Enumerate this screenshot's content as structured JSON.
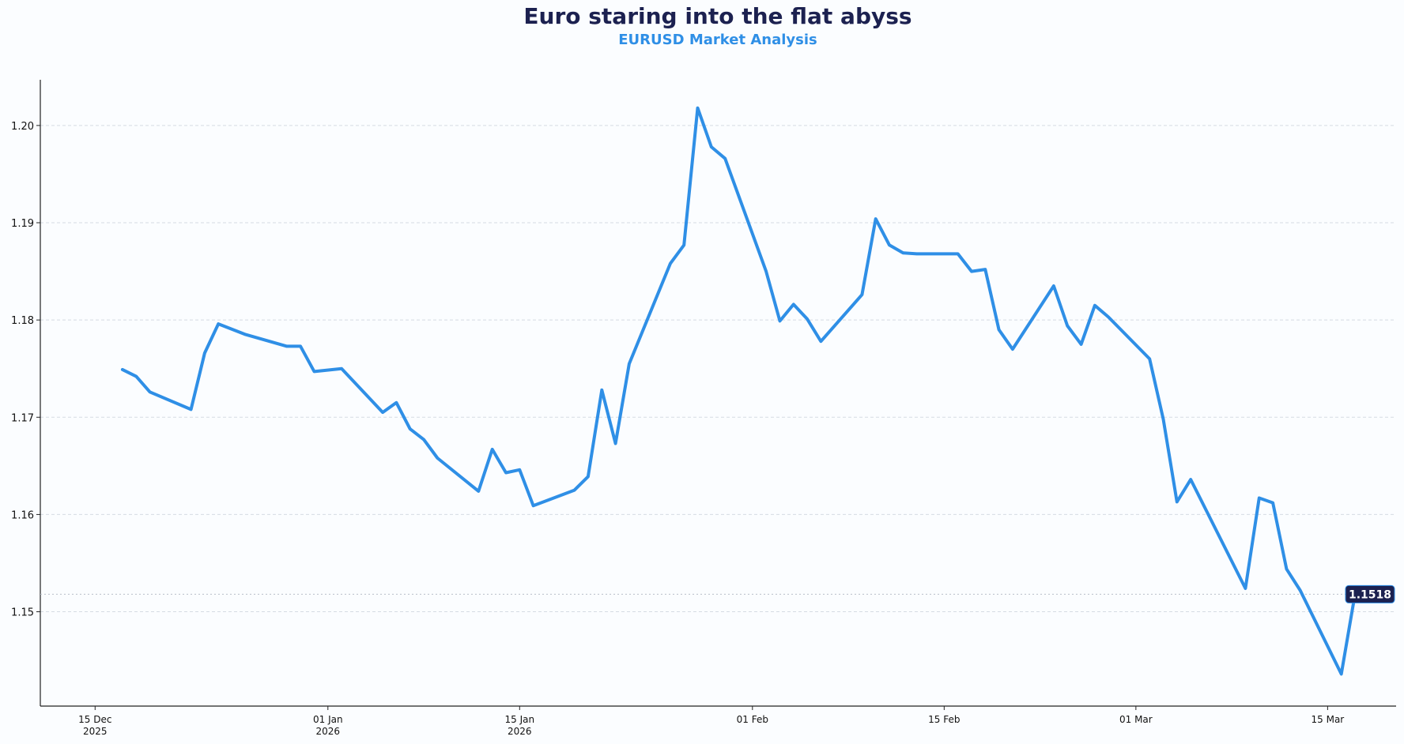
{
  "title": "Euro staring into the flat abyss",
  "subtitle": "EURUSD Market Analysis",
  "colors": {
    "line": "#2f8fe6",
    "title": "#1c2150",
    "subtitle": "#2f8fe6",
    "badge_bg": "#1c2150",
    "grid": "#d5dbe3",
    "background": "#fbfdff"
  },
  "chart_data": {
    "type": "line",
    "title": "Euro staring into the flat abyss",
    "subtitle": "EURUSD Market Analysis",
    "xlabel": "",
    "ylabel": "",
    "xlim": [
      "2025-12-11",
      "2026-03-20"
    ],
    "ylim": [
      1.1403,
      1.2047
    ],
    "y_ticks": [
      1.15,
      1.16,
      1.17,
      1.18,
      1.19,
      1.2
    ],
    "y_tick_labels": [
      "1.15",
      "1.16",
      "1.17",
      "1.18",
      "1.19",
      "1.20"
    ],
    "x_ticks": [
      {
        "date": "2025-12-15",
        "label": "15 Dec",
        "sublabel": "2025"
      },
      {
        "date": "2026-01-01",
        "label": "01 Jan",
        "sublabel": "2026"
      },
      {
        "date": "2026-01-15",
        "label": "15 Jan",
        "sublabel": "2026"
      },
      {
        "date": "2026-02-01",
        "label": "01 Feb",
        "sublabel": ""
      },
      {
        "date": "2026-02-15",
        "label": "15 Feb",
        "sublabel": ""
      },
      {
        "date": "2026-03-01",
        "label": "01 Mar",
        "sublabel": ""
      },
      {
        "date": "2026-03-15",
        "label": "15 Mar",
        "sublabel": ""
      }
    ],
    "grid": "horizontal dashed",
    "last_value_label": "1.1518",
    "last_value": 1.1518,
    "series": [
      {
        "x": [
          "2025-12-17",
          "2025-12-18",
          "2025-12-19",
          "2025-12-22",
          "2025-12-23",
          "2025-12-24",
          "2025-12-26",
          "2025-12-29",
          "2025-12-30",
          "2025-12-31",
          "2026-01-02",
          "2026-01-05",
          "2026-01-06",
          "2026-01-07",
          "2026-01-08",
          "2026-01-09",
          "2026-01-12",
          "2026-01-13",
          "2026-01-14",
          "2026-01-15",
          "2026-01-16",
          "2026-01-19",
          "2026-01-20",
          "2026-01-21",
          "2026-01-22",
          "2026-01-23",
          "2026-01-26",
          "2026-01-27",
          "2026-01-28",
          "2026-01-29",
          "2026-01-30",
          "2026-02-02",
          "2026-02-03",
          "2026-02-04",
          "2026-02-05",
          "2026-02-06",
          "2026-02-09",
          "2026-02-10",
          "2026-02-11",
          "2026-02-12",
          "2026-02-13",
          "2026-02-16",
          "2026-02-17",
          "2026-02-18",
          "2026-02-19",
          "2026-02-20",
          "2026-02-23",
          "2026-02-24",
          "2026-02-25",
          "2026-02-26",
          "2026-02-27",
          "2026-03-02",
          "2026-03-03",
          "2026-03-04",
          "2026-03-05",
          "2026-03-09",
          "2026-03-10",
          "2026-03-11",
          "2026-03-12",
          "2026-03-13",
          "2026-03-16",
          "2026-03-17"
        ],
        "values": [
          1.1749,
          1.1742,
          1.1726,
          1.1708,
          1.1766,
          1.1796,
          1.1785,
          1.1773,
          1.1773,
          1.1747,
          1.175,
          1.1705,
          1.1715,
          1.1688,
          1.1677,
          1.1658,
          1.1624,
          1.1667,
          1.1643,
          1.1646,
          1.1609,
          1.1625,
          1.1639,
          1.1728,
          1.1673,
          1.1755,
          1.1858,
          1.1877,
          1.2018,
          1.1978,
          1.1966,
          1.185,
          1.1799,
          1.1816,
          1.1801,
          1.1778,
          1.1826,
          1.1904,
          1.1877,
          1.1869,
          1.1868,
          1.1868,
          1.185,
          1.1852,
          1.179,
          1.177,
          1.1835,
          1.1794,
          1.1775,
          1.1815,
          1.1803,
          1.176,
          1.1698,
          1.1613,
          1.1636,
          1.1524,
          1.1617,
          1.1612,
          1.1544,
          1.1522,
          1.1436,
          1.1518
        ]
      }
    ]
  }
}
